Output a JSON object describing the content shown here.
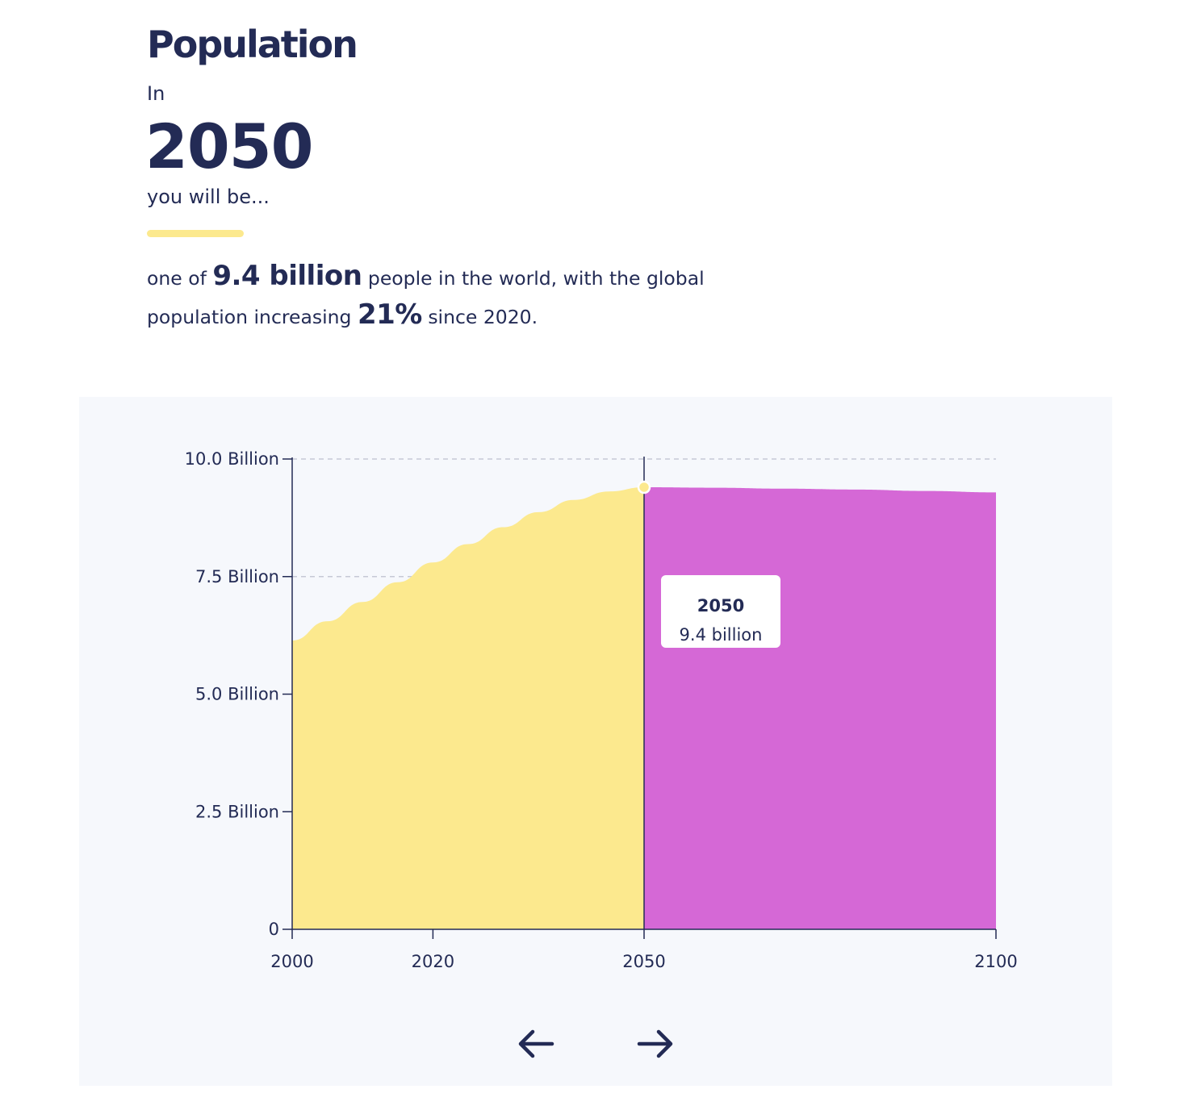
{
  "header": {
    "title": "Population",
    "intro": "In",
    "year": "2050",
    "outro": "you will be..."
  },
  "summary": {
    "pre": "one of",
    "population": "9.4 billion",
    "mid": "people in the world, with the global population increasing",
    "growth": "21%",
    "post": "since 2020."
  },
  "tooltip": {
    "year": "2050",
    "value": "9.4 billion"
  },
  "navigation": {
    "prev_icon": "arrow-left-icon",
    "next_icon": "arrow-right-icon"
  },
  "colors": {
    "text": "#232b55",
    "past": "#fce98e",
    "future": "#d568d6",
    "panel": "#f6f8fc",
    "grid": "#c5c9d6"
  },
  "chart_data": {
    "type": "area",
    "xlim": [
      2000,
      2100
    ],
    "ylim": [
      0,
      10
    ],
    "x_ticks": [
      2000,
      2020,
      2050,
      2100
    ],
    "x_tick_labels": [
      "2000",
      "2020",
      "2050",
      "2100"
    ],
    "y_ticks": [
      0,
      2.5,
      5,
      7.5,
      10
    ],
    "y_tick_labels": [
      "0",
      "2.5 Billion",
      "5.0 Billion",
      "7.5 Billion",
      "10.0 Billion"
    ],
    "grid": true,
    "selected_x": 2050,
    "series": [
      {
        "x": [
          2000,
          2005,
          2010,
          2015,
          2020,
          2025,
          2030,
          2035,
          2040,
          2045,
          2050
        ],
        "values": [
          6.14,
          6.55,
          6.96,
          7.38,
          7.8,
          8.19,
          8.55,
          8.87,
          9.13,
          9.31,
          9.4
        ]
      },
      {
        "x": [
          2050,
          2060,
          2070,
          2080,
          2090,
          2100
        ],
        "values": [
          9.4,
          9.39,
          9.37,
          9.35,
          9.32,
          9.29
        ]
      }
    ]
  }
}
